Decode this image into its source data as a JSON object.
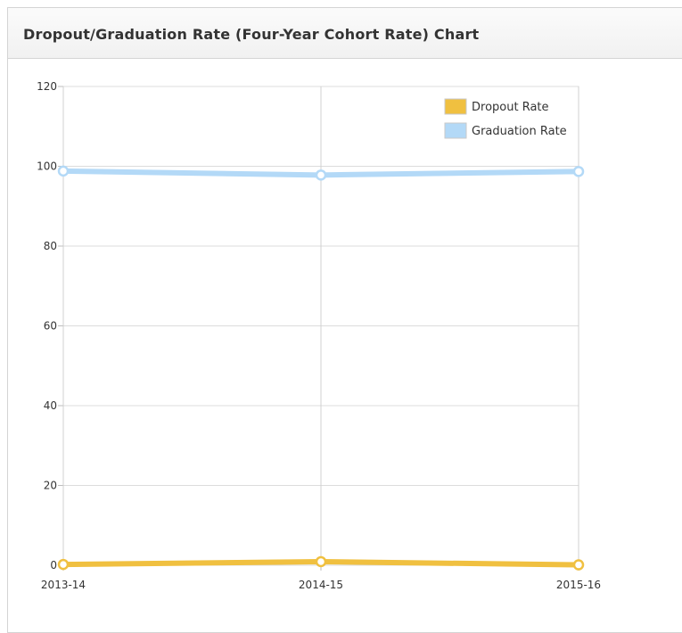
{
  "panel": {
    "title": "Dropout/Graduation Rate (Four-Year Cohort Rate) Chart"
  },
  "chart_data": {
    "type": "line",
    "title": "Dropout/Graduation Rate (Four-Year Cohort Rate) Chart",
    "xlabel": "",
    "ylabel": "",
    "categories": [
      "2013-14",
      "2014-15",
      "2015-16"
    ],
    "ylim": [
      0,
      120
    ],
    "yticks": [
      0,
      20,
      40,
      60,
      80,
      100,
      120
    ],
    "grid": true,
    "legend_position": "top-right",
    "series": [
      {
        "name": "Dropout Rate",
        "values": [
          0.2,
          0.9,
          0.1
        ],
        "color": "#f0c040"
      },
      {
        "name": "Graduation Rate",
        "values": [
          98.8,
          97.8,
          98.7
        ],
        "color": "#b3d9f7"
      }
    ]
  }
}
